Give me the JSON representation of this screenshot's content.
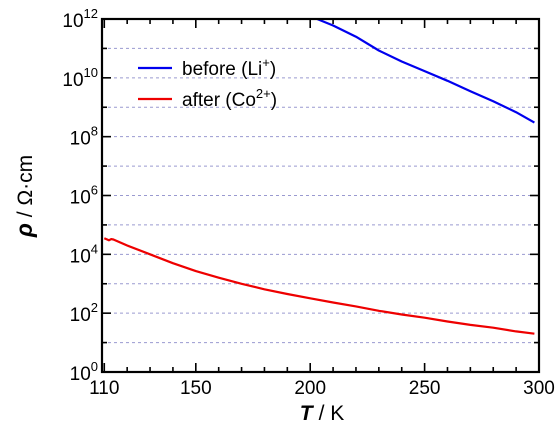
{
  "chart_data": {
    "type": "line",
    "title": "",
    "xlabel": {
      "symbol": "T",
      "unit": "/ K"
    },
    "ylabel": {
      "symbol": "ρ",
      "unit": "/ Ω·cm"
    },
    "xlim": [
      109,
      300
    ],
    "ylim": [
      1,
      1000000000000
    ],
    "yscale": "log",
    "grid": "horizontal dashed at each decade",
    "legend_position": "upper-left",
    "x_ticks": [
      "110",
      "150",
      "200",
      "250",
      "300"
    ],
    "y_ticks": [
      {
        "base": "10",
        "exp": "0"
      },
      {
        "base": "10",
        "exp": "2"
      },
      {
        "base": "10",
        "exp": "4"
      },
      {
        "base": "10",
        "exp": "6"
      },
      {
        "base": "10",
        "exp": "8"
      },
      {
        "base": "10",
        "exp": "10"
      },
      {
        "base": "10",
        "exp": "12"
      }
    ],
    "series": [
      {
        "name": "before (Li⁺)",
        "label_main": "before (Li",
        "label_sup": "+",
        "label_end": ")",
        "color": "#0000ee",
        "points": [
          [
            203,
            1000000000000.0
          ],
          [
            210,
            600000000000.0
          ],
          [
            220,
            250000000000.0
          ],
          [
            230,
            85000000000.0
          ],
          [
            240,
            36000000000.0
          ],
          [
            250,
            17000000000.0
          ],
          [
            260,
            7900000000.0
          ],
          [
            270,
            3500000000.0
          ],
          [
            280,
            1600000000.0
          ],
          [
            290,
            680000000.0
          ],
          [
            298,
            300000000.0
          ]
        ]
      },
      {
        "name": "after (Co²⁺)",
        "label_main": "after (Co",
        "label_sup": "2+",
        "label_end": ")",
        "color": "#ee0000",
        "points": [
          [
            110,
            35000.0
          ],
          [
            112,
            30000.0
          ],
          [
            113,
            33000.0
          ],
          [
            114,
            32000.0
          ],
          [
            120,
            20000.0
          ],
          [
            130,
            10000.0
          ],
          [
            140,
            5000.0
          ],
          [
            150,
            2700.0
          ],
          [
            160,
            1600.0
          ],
          [
            170,
            1000.0
          ],
          [
            180,
            650.0
          ],
          [
            190,
            450.0
          ],
          [
            200,
            320.0
          ],
          [
            210,
            230.0
          ],
          [
            220,
            170.0
          ],
          [
            230,
            120.0
          ],
          [
            240,
            90.0
          ],
          [
            250,
            70.0
          ],
          [
            260,
            52.0
          ],
          [
            270,
            40.0
          ],
          [
            280,
            32.0
          ],
          [
            290,
            24.0
          ],
          [
            298,
            20.0
          ]
        ]
      }
    ]
  }
}
